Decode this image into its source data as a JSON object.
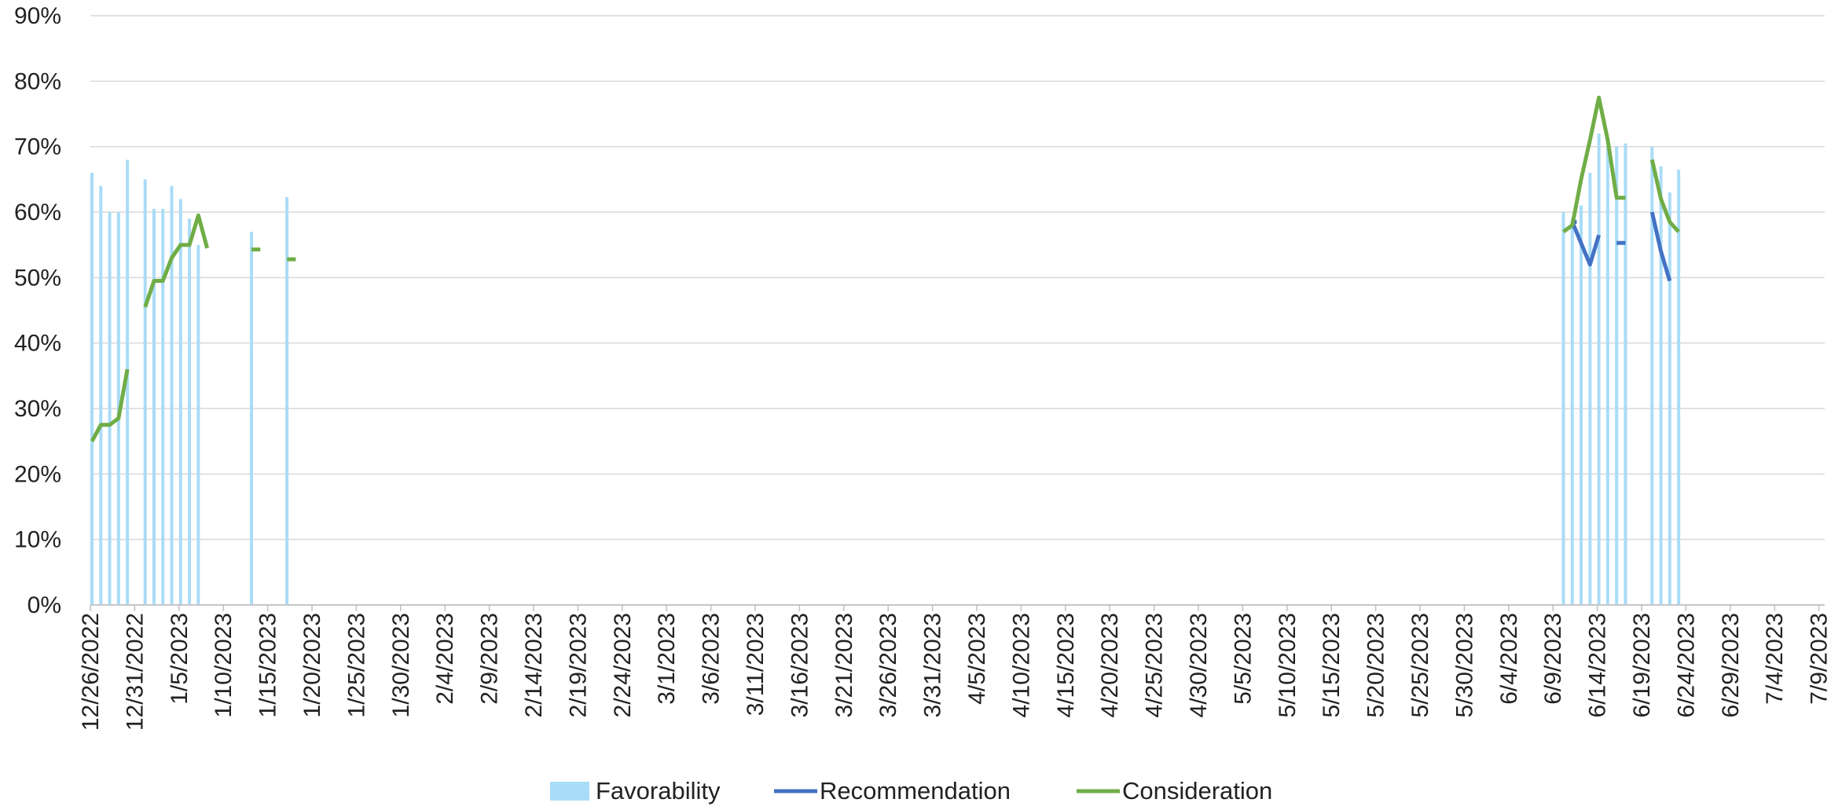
{
  "chart_data": {
    "type": "bar",
    "x_start_date": "12/26/2022",
    "x_tick_labels": [
      "12/26/2022",
      "12/31/2022",
      "1/5/2023",
      "1/10/2023",
      "1/15/2023",
      "1/20/2023",
      "1/25/2023",
      "1/30/2023",
      "2/4/2023",
      "2/9/2023",
      "2/14/2023",
      "2/19/2023",
      "2/24/2023",
      "3/1/2023",
      "3/6/2023",
      "3/11/2023",
      "3/16/2023",
      "3/21/2023",
      "3/26/2023",
      "3/31/2023",
      "4/5/2023",
      "4/10/2023",
      "4/15/2023",
      "4/20/2023",
      "4/25/2023",
      "4/30/2023",
      "5/5/2023",
      "5/10/2023",
      "5/15/2023",
      "5/20/2023",
      "5/25/2023",
      "5/30/2023",
      "6/4/2023",
      "6/9/2023",
      "6/14/2023",
      "6/19/2023",
      "6/24/2023",
      "6/29/2023",
      "7/4/2023",
      "7/9/2023"
    ],
    "y_tick_labels": [
      "0%",
      "10%",
      "20%",
      "30%",
      "40%",
      "50%",
      "60%",
      "70%",
      "80%",
      "90%"
    ],
    "ylim": [
      0,
      90
    ],
    "grid": true,
    "legend_position": "bottom",
    "series": [
      {
        "name": "Favorability",
        "kind": "bar",
        "color": "#a9dcf7",
        "points": [
          [
            "12/26/2022",
            66
          ],
          [
            "12/27/2022",
            64
          ],
          [
            "12/28/2022",
            60
          ],
          [
            "12/29/2022",
            60
          ],
          [
            "12/30/2022",
            68
          ],
          [
            "1/1/2023",
            65
          ],
          [
            "1/2/2023",
            60.5
          ],
          [
            "1/3/2023",
            60.5
          ],
          [
            "1/4/2023",
            64
          ],
          [
            "1/5/2023",
            62
          ],
          [
            "1/6/2023",
            59
          ],
          [
            "1/7/2023",
            55
          ],
          [
            "1/13/2023",
            57
          ],
          [
            "1/17/2023",
            62.3
          ],
          [
            "6/10/2023",
            60
          ],
          [
            "6/11/2023",
            59
          ],
          [
            "6/12/2023",
            61
          ],
          [
            "6/13/2023",
            66
          ],
          [
            "6/14/2023",
            72
          ],
          [
            "6/15/2023",
            70
          ],
          [
            "6/16/2023",
            70
          ],
          [
            "6/17/2023",
            70.5
          ],
          [
            "6/20/2023",
            70
          ],
          [
            "6/21/2023",
            67
          ],
          [
            "6/22/2023",
            63
          ],
          [
            "6/23/2023",
            66.5
          ]
        ]
      },
      {
        "name": "Recommendation",
        "kind": "line",
        "color": "#4472c4",
        "segments": [
          [
            [
              "6/11/2023",
              58.5
            ],
            [
              "6/11.5/2023",
              58.5
            ]
          ],
          [
            [
              "6/11/2023",
              58.5
            ],
            [
              "6/13/2023",
              52
            ],
            [
              "6/14/2023",
              56.5
            ]
          ],
          [
            [
              "6/16/2023",
              55.3
            ],
            [
              "6/17/2023",
              55.3
            ]
          ],
          [
            [
              "6/20/2023",
              60
            ],
            [
              "6/21/2023",
              54
            ],
            [
              "6/22/2023",
              49.5
            ]
          ]
        ]
      },
      {
        "name": "Consideration",
        "kind": "line",
        "color": "#70ad47",
        "segments": [
          [
            [
              "12/26/2022",
              25
            ],
            [
              "12/27/2022",
              27.5
            ],
            [
              "12/28/2022",
              27.5
            ],
            [
              "12/29/2022",
              28.5
            ],
            [
              "12/30/2022",
              36
            ]
          ],
          [
            [
              "1/1/2023",
              45.5
            ],
            [
              "1/2/2023",
              49.5
            ],
            [
              "1/3/2023",
              49.5
            ],
            [
              "1/4/2023",
              53
            ],
            [
              "1/5/2023",
              55
            ],
            [
              "1/6/2023",
              55
            ],
            [
              "1/7/2023",
              59.5
            ],
            [
              "1/8/2023",
              54.5
            ]
          ],
          [
            [
              "1/13/2023",
              54.3
            ],
            [
              "1/14/2023",
              54.3
            ]
          ],
          [
            [
              "1/17/2023",
              52.8
            ],
            [
              "1/18/2023",
              52.8
            ]
          ],
          [
            [
              "6/10/2023",
              57
            ],
            [
              "6/11/2023",
              58
            ],
            [
              "6/12/2023",
              65
            ],
            [
              "6/13/2023",
              71
            ],
            [
              "6/14/2023",
              77.5
            ],
            [
              "6/15/2023",
              71
            ],
            [
              "6/16/2023",
              62.2
            ],
            [
              "6/17/2023",
              62.2
            ]
          ],
          [
            [
              "6/20/2023",
              68
            ],
            [
              "6/21/2023",
              62
            ],
            [
              "6/22/2023",
              58.5
            ],
            [
              "6/23/2023",
              57
            ]
          ]
        ]
      }
    ]
  }
}
